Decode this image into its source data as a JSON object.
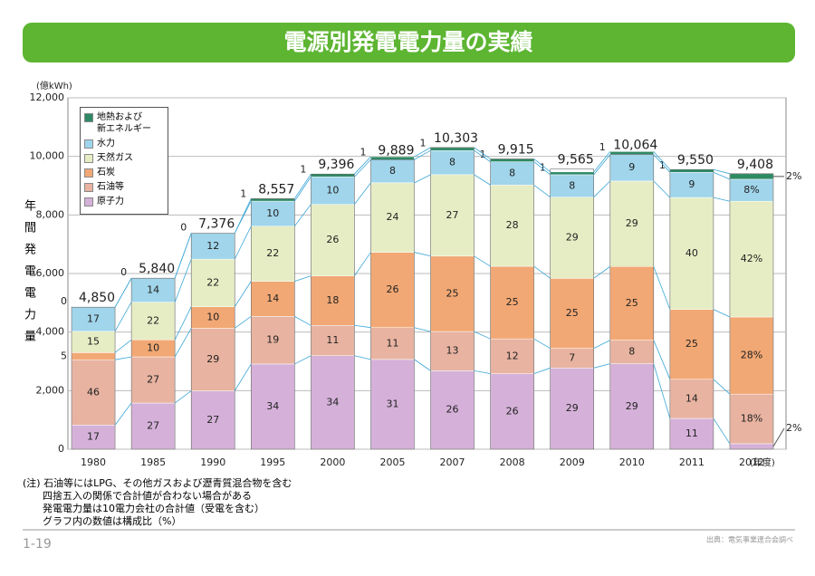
{
  "title": "電源別発電電力量の実績",
  "notes": [
    "(注) 石油等にはLPG、その他ガスおよび瀝青質混合物を含む",
    "四捨五入の関係で合計値が合わない場合がある",
    "発電電力量は10電力会社の合計値（受電を含む）",
    "グラフ内の数値は構成比（%）"
  ],
  "page_number": "1-19",
  "source": "出典：電気事業連合会調べ",
  "chart_data": {
    "type": "stacked_bar",
    "y_unit": "(億kWh)",
    "ylabel": "年間発電電力量",
    "x_unit": "(年度)",
    "categories": [
      "1980",
      "1985",
      "1990",
      "1995",
      "2000",
      "2005",
      "2007",
      "2008",
      "2009",
      "2010",
      "2011",
      "2012"
    ],
    "totals": {
      "values": [
        4850,
        5840,
        7376,
        8557,
        9396,
        9889,
        10303,
        9915,
        9565,
        10064,
        9550,
        9408
      ],
      "value_labels": [
        "4,850",
        "5,840",
        "7,376",
        "8,557",
        "9,396",
        "9,889",
        "10,303",
        "9,915",
        "9,565",
        "10,064",
        "9,550",
        "9,408"
      ]
    },
    "series": [
      {
        "name": "原子力",
        "color": "#d5b1d9",
        "values": [
          17,
          27,
          27,
          34,
          34,
          31,
          26,
          26,
          29,
          29,
          11,
          2
        ],
        "value_labels": [
          "17",
          "27",
          "27",
          "34",
          "34",
          "31",
          "26",
          "26",
          "29",
          "29",
          "11",
          "2%"
        ]
      },
      {
        "name": "石油等",
        "color": "#e8b3a1",
        "values": [
          46,
          27,
          29,
          19,
          11,
          11,
          13,
          12,
          7,
          8,
          14,
          18
        ],
        "value_labels": [
          "46",
          "27",
          "29",
          "19",
          "11",
          "11",
          "13",
          "12",
          "7",
          "8",
          "14",
          "18%"
        ]
      },
      {
        "name": "石炭",
        "color": "#f2a874",
        "values": [
          5,
          10,
          10,
          14,
          18,
          26,
          25,
          25,
          25,
          25,
          25,
          28
        ],
        "value_labels": [
          "5",
          "10",
          "10",
          "14",
          "18",
          "26",
          "25",
          "25",
          "25",
          "25",
          "25",
          "28%"
        ]
      },
      {
        "name": "天然ガス",
        "color": "#e6edc4",
        "values": [
          15,
          22,
          22,
          22,
          26,
          24,
          27,
          28,
          29,
          29,
          40,
          42
        ],
        "value_labels": [
          "15",
          "22",
          "22",
          "22",
          "26",
          "24",
          "27",
          "28",
          "29",
          "29",
          "40",
          "42%"
        ]
      },
      {
        "name": "水力",
        "color": "#a0d5eb",
        "values": [
          17,
          14,
          12,
          10,
          10,
          8,
          8,
          8,
          8,
          9,
          9,
          8
        ],
        "value_labels": [
          "17",
          "14",
          "12",
          "10",
          "10",
          "8",
          "8",
          "8",
          "8",
          "9",
          "9",
          "8%"
        ]
      },
      {
        "name": "地熱および\n新エネルギー",
        "color": "#2e8a64",
        "values": [
          0,
          0,
          0,
          1,
          1,
          1,
          1,
          1,
          1,
          1,
          1,
          2
        ],
        "value_labels": [
          "0",
          "0",
          "0",
          "1",
          "1",
          "1",
          "1",
          "1",
          "1",
          "1",
          "1",
          "2%"
        ]
      }
    ],
    "ylim": [
      0,
      12000
    ],
    "yticks": [
      0,
      {
        "value": 2000,
        "label": "2,000"
      },
      {
        "value": 4000,
        "label": "4,000"
      },
      {
        "value": 6000,
        "label": "6,000"
      },
      {
        "value": 8000,
        "label": "8,000"
      },
      {
        "value": 10000,
        "label": "10,000"
      },
      {
        "value": 12000,
        "label": "12,000"
      }
    ],
    "grid": true
  }
}
